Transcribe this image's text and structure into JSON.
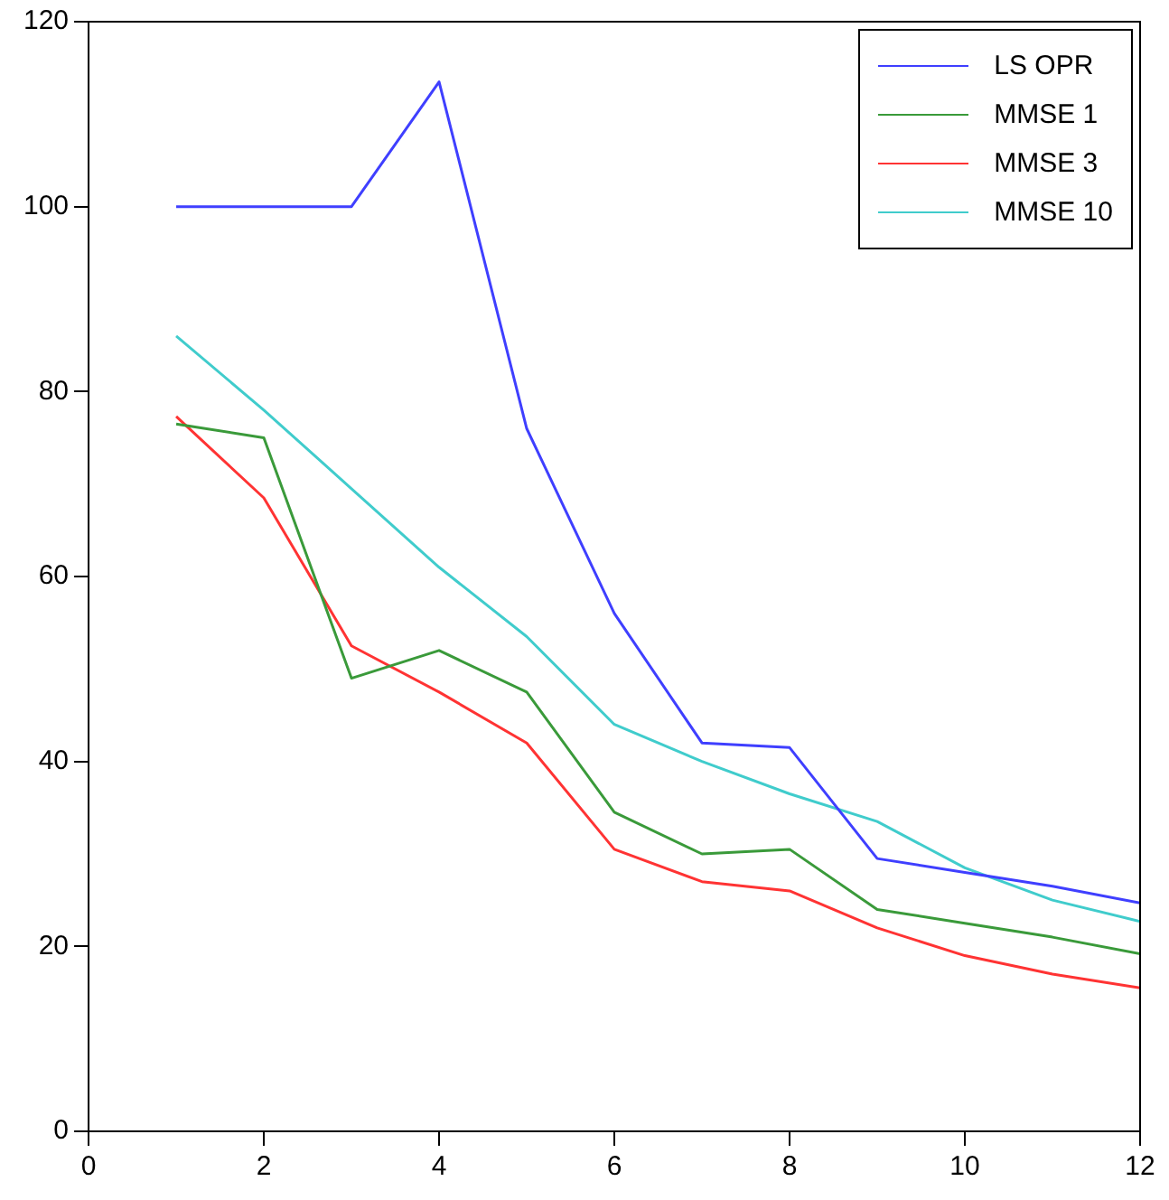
{
  "chart_data": {
    "type": "line",
    "x": [
      1,
      2,
      3,
      4,
      5,
      6,
      7,
      8,
      9,
      10,
      11,
      12
    ],
    "series": [
      {
        "name": "LS OPR",
        "color": "#3f3fff",
        "values": [
          100,
          100,
          100,
          113.5,
          76,
          56,
          42,
          41.5,
          29.5,
          28,
          26.5,
          24.7
        ]
      },
      {
        "name": "MMSE 1",
        "color": "#3a9a3a",
        "values": [
          76.5,
          75,
          49,
          52,
          47.5,
          34.5,
          30,
          30.5,
          24,
          22.5,
          21,
          19.2
        ]
      },
      {
        "name": "MMSE 3",
        "color": "#ff3333",
        "values": [
          77.3,
          68.5,
          52.5,
          47.5,
          42,
          30.5,
          27,
          26,
          22,
          19,
          17,
          15.5
        ]
      },
      {
        "name": "MMSE 10",
        "color": "#40cccc",
        "values": [
          86,
          78,
          69.5,
          61,
          53.5,
          44,
          40,
          36.5,
          33.5,
          28.5,
          25,
          22.7
        ]
      }
    ],
    "xlim": [
      0,
      12
    ],
    "xticks": [
      0,
      2,
      4,
      6,
      8,
      10,
      12
    ],
    "ylim": [
      0,
      120
    ],
    "yticks": [
      0,
      20,
      40,
      60,
      80,
      100,
      120
    ],
    "grid": false,
    "legend": "top right",
    "marker": "none",
    "line_style": "solid"
  }
}
